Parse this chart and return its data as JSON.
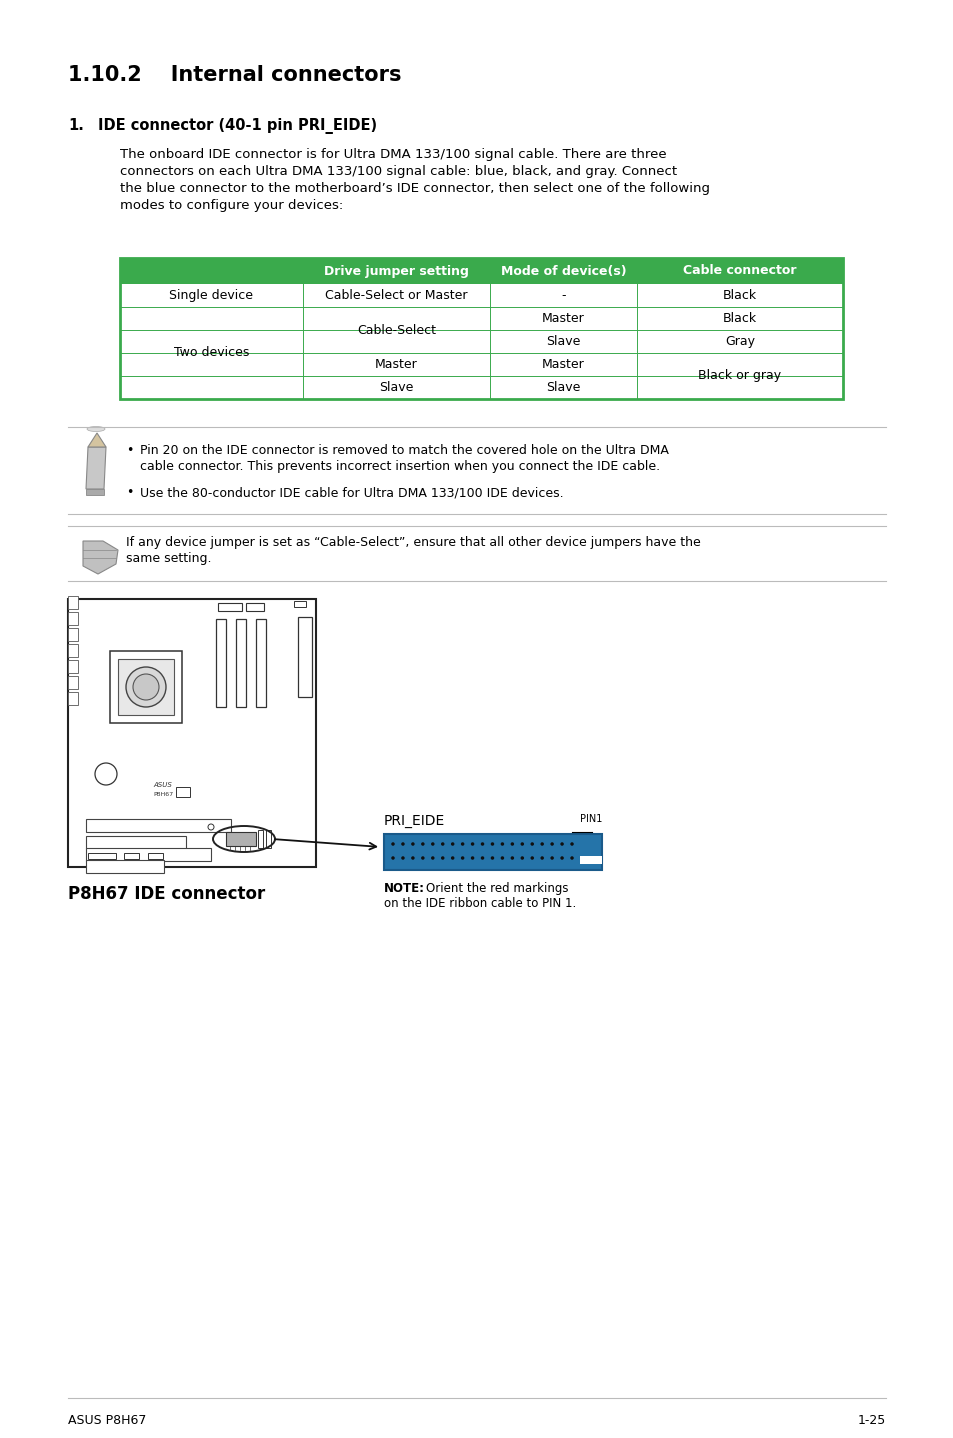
{
  "title_num": "1.10.2",
  "title_text": "Internal connectors",
  "section_num": "1.",
  "section_title": "IDE connector (40-1 pin PRI_EIDE)",
  "body_lines": [
    "The onboard IDE connector is for Ultra DMA 133/100 signal cable. There are three",
    "connectors on each Ultra DMA 133/100 signal cable: blue, black, and gray. Connect",
    "the blue connector to the motherboard’s IDE connector, then select one of the following",
    "modes to configure your devices:"
  ],
  "table_green": "#3aaa4c",
  "table_white": "#ffffff",
  "table_headers": [
    "Drive jumper setting",
    "Mode of device(s)",
    "Cable connector"
  ],
  "bullet1_lines": [
    "Pin 20 on the IDE connector is removed to match the covered hole on the Ultra DMA",
    "cable connector. This prevents incorrect insertion when you connect the IDE cable."
  ],
  "bullet2": "Use the 80-conductor IDE cable for Ultra DMA 133/100 IDE devices.",
  "note2_line1": "If any device jumper is set as “Cable-Select”, ensure that all other device jumpers have the",
  "note2_line2": "same setting.",
  "conn_label": "PRI_EIDE",
  "conn_pin": "PIN1",
  "note_bold": "NOTE:",
  "note_line1": "Orient the red markings",
  "note_line2": "on the IDE ribbon cable to PIN 1.",
  "caption": "P8H67 IDE connector",
  "footer_left": "ASUS P8H67",
  "footer_right": "1-25",
  "bg": "#ffffff",
  "fg": "#000000",
  "sep_color": "#bbbbbb",
  "conn_blue": "#2574a9",
  "conn_dot": "#111111"
}
